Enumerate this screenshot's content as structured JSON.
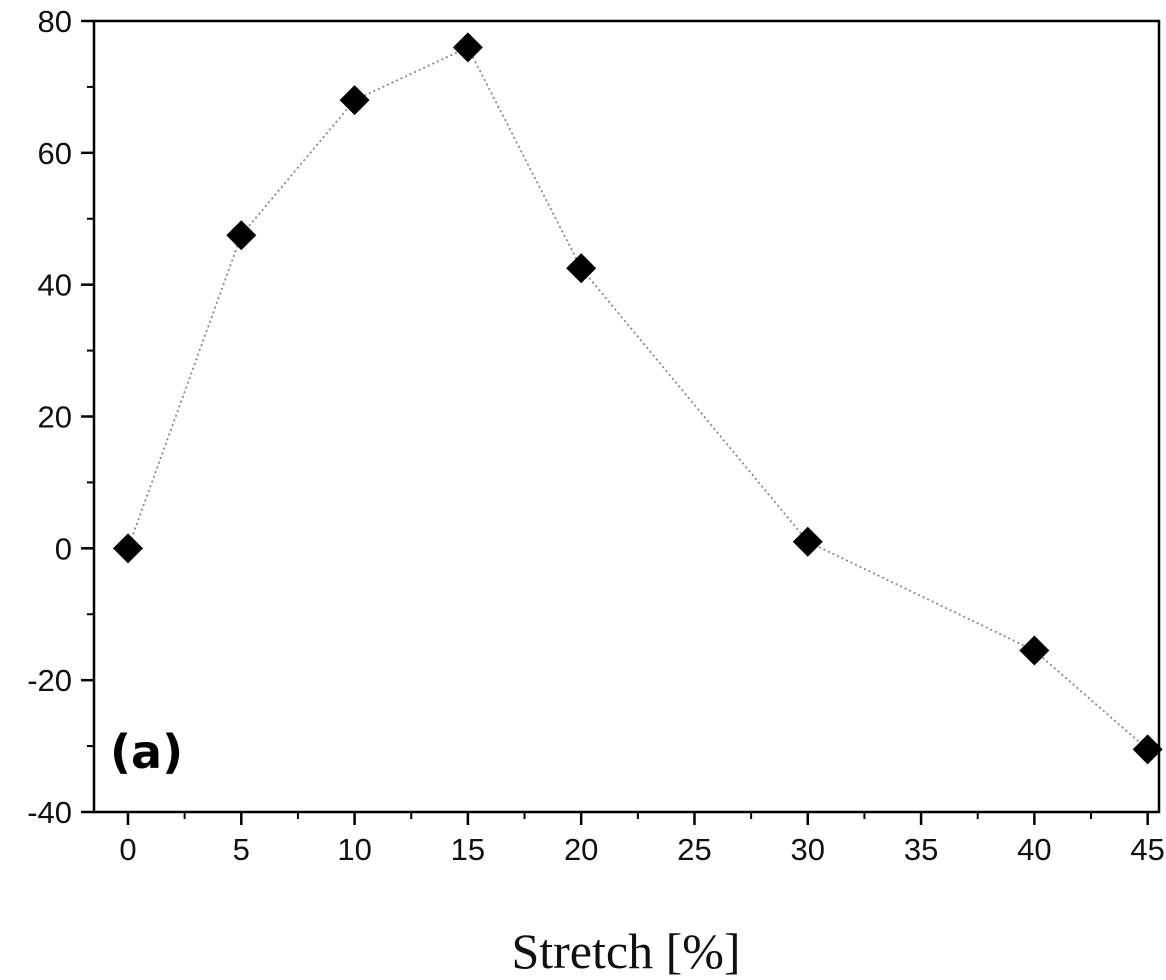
{
  "chart_data": {
    "type": "scatter",
    "title": "",
    "xlabel": "Stretch [%]",
    "ylabel": "",
    "panel_label": "(a)",
    "xlim": [
      -1.5,
      45.5
    ],
    "ylim": [
      -40,
      80
    ],
    "x_ticks": [
      0,
      5,
      10,
      15,
      20,
      25,
      30,
      35,
      40,
      45
    ],
    "y_ticks": [
      -40,
      -20,
      0,
      20,
      40,
      60,
      80
    ],
    "x_tick_labels": [
      "0",
      "5",
      "10",
      "15",
      "20",
      "25",
      "30",
      "35",
      "40",
      "45"
    ],
    "y_tick_labels": [
      "-40",
      "-20",
      "0",
      "20",
      "40",
      "60",
      "80"
    ],
    "grid": false,
    "series": [
      {
        "marker": "diamond",
        "line_style": "dotted",
        "color": "#000000",
        "line_color": "#888888",
        "x": [
          0,
          5,
          10,
          15,
          20,
          30,
          40,
          45
        ],
        "y": [
          0,
          47.5,
          68,
          76,
          42.5,
          1,
          -15.5,
          -30.5
        ]
      }
    ]
  }
}
